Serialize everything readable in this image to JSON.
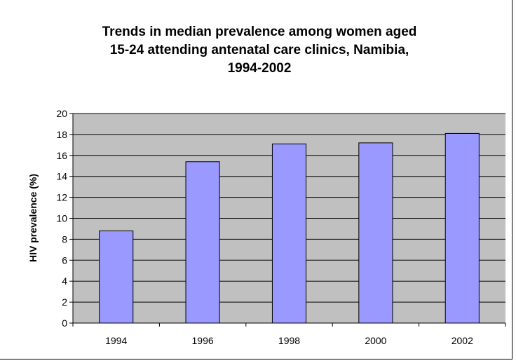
{
  "chart_data": {
    "type": "bar",
    "title_lines": [
      "Trends in median prevalence among women aged",
      "15-24 attending antenatal care clinics, Namibia,",
      "1994-2002"
    ],
    "xlabel": "",
    "ylabel": "HIV prevalence (%)",
    "categories": [
      "1994",
      "1996",
      "1998",
      "2000",
      "2002"
    ],
    "values": [
      8.8,
      15.4,
      17.1,
      17.2,
      18.1
    ],
    "ylim": [
      0,
      20
    ],
    "yticks": [
      0,
      2,
      4,
      6,
      8,
      10,
      12,
      14,
      16,
      18,
      20
    ],
    "grid": true,
    "legend": "none",
    "colors": {
      "bar_fill": "#9999ff",
      "bar_stroke": "#000000",
      "plot_background": "#c0c0c0",
      "gridline": "#000000"
    }
  }
}
